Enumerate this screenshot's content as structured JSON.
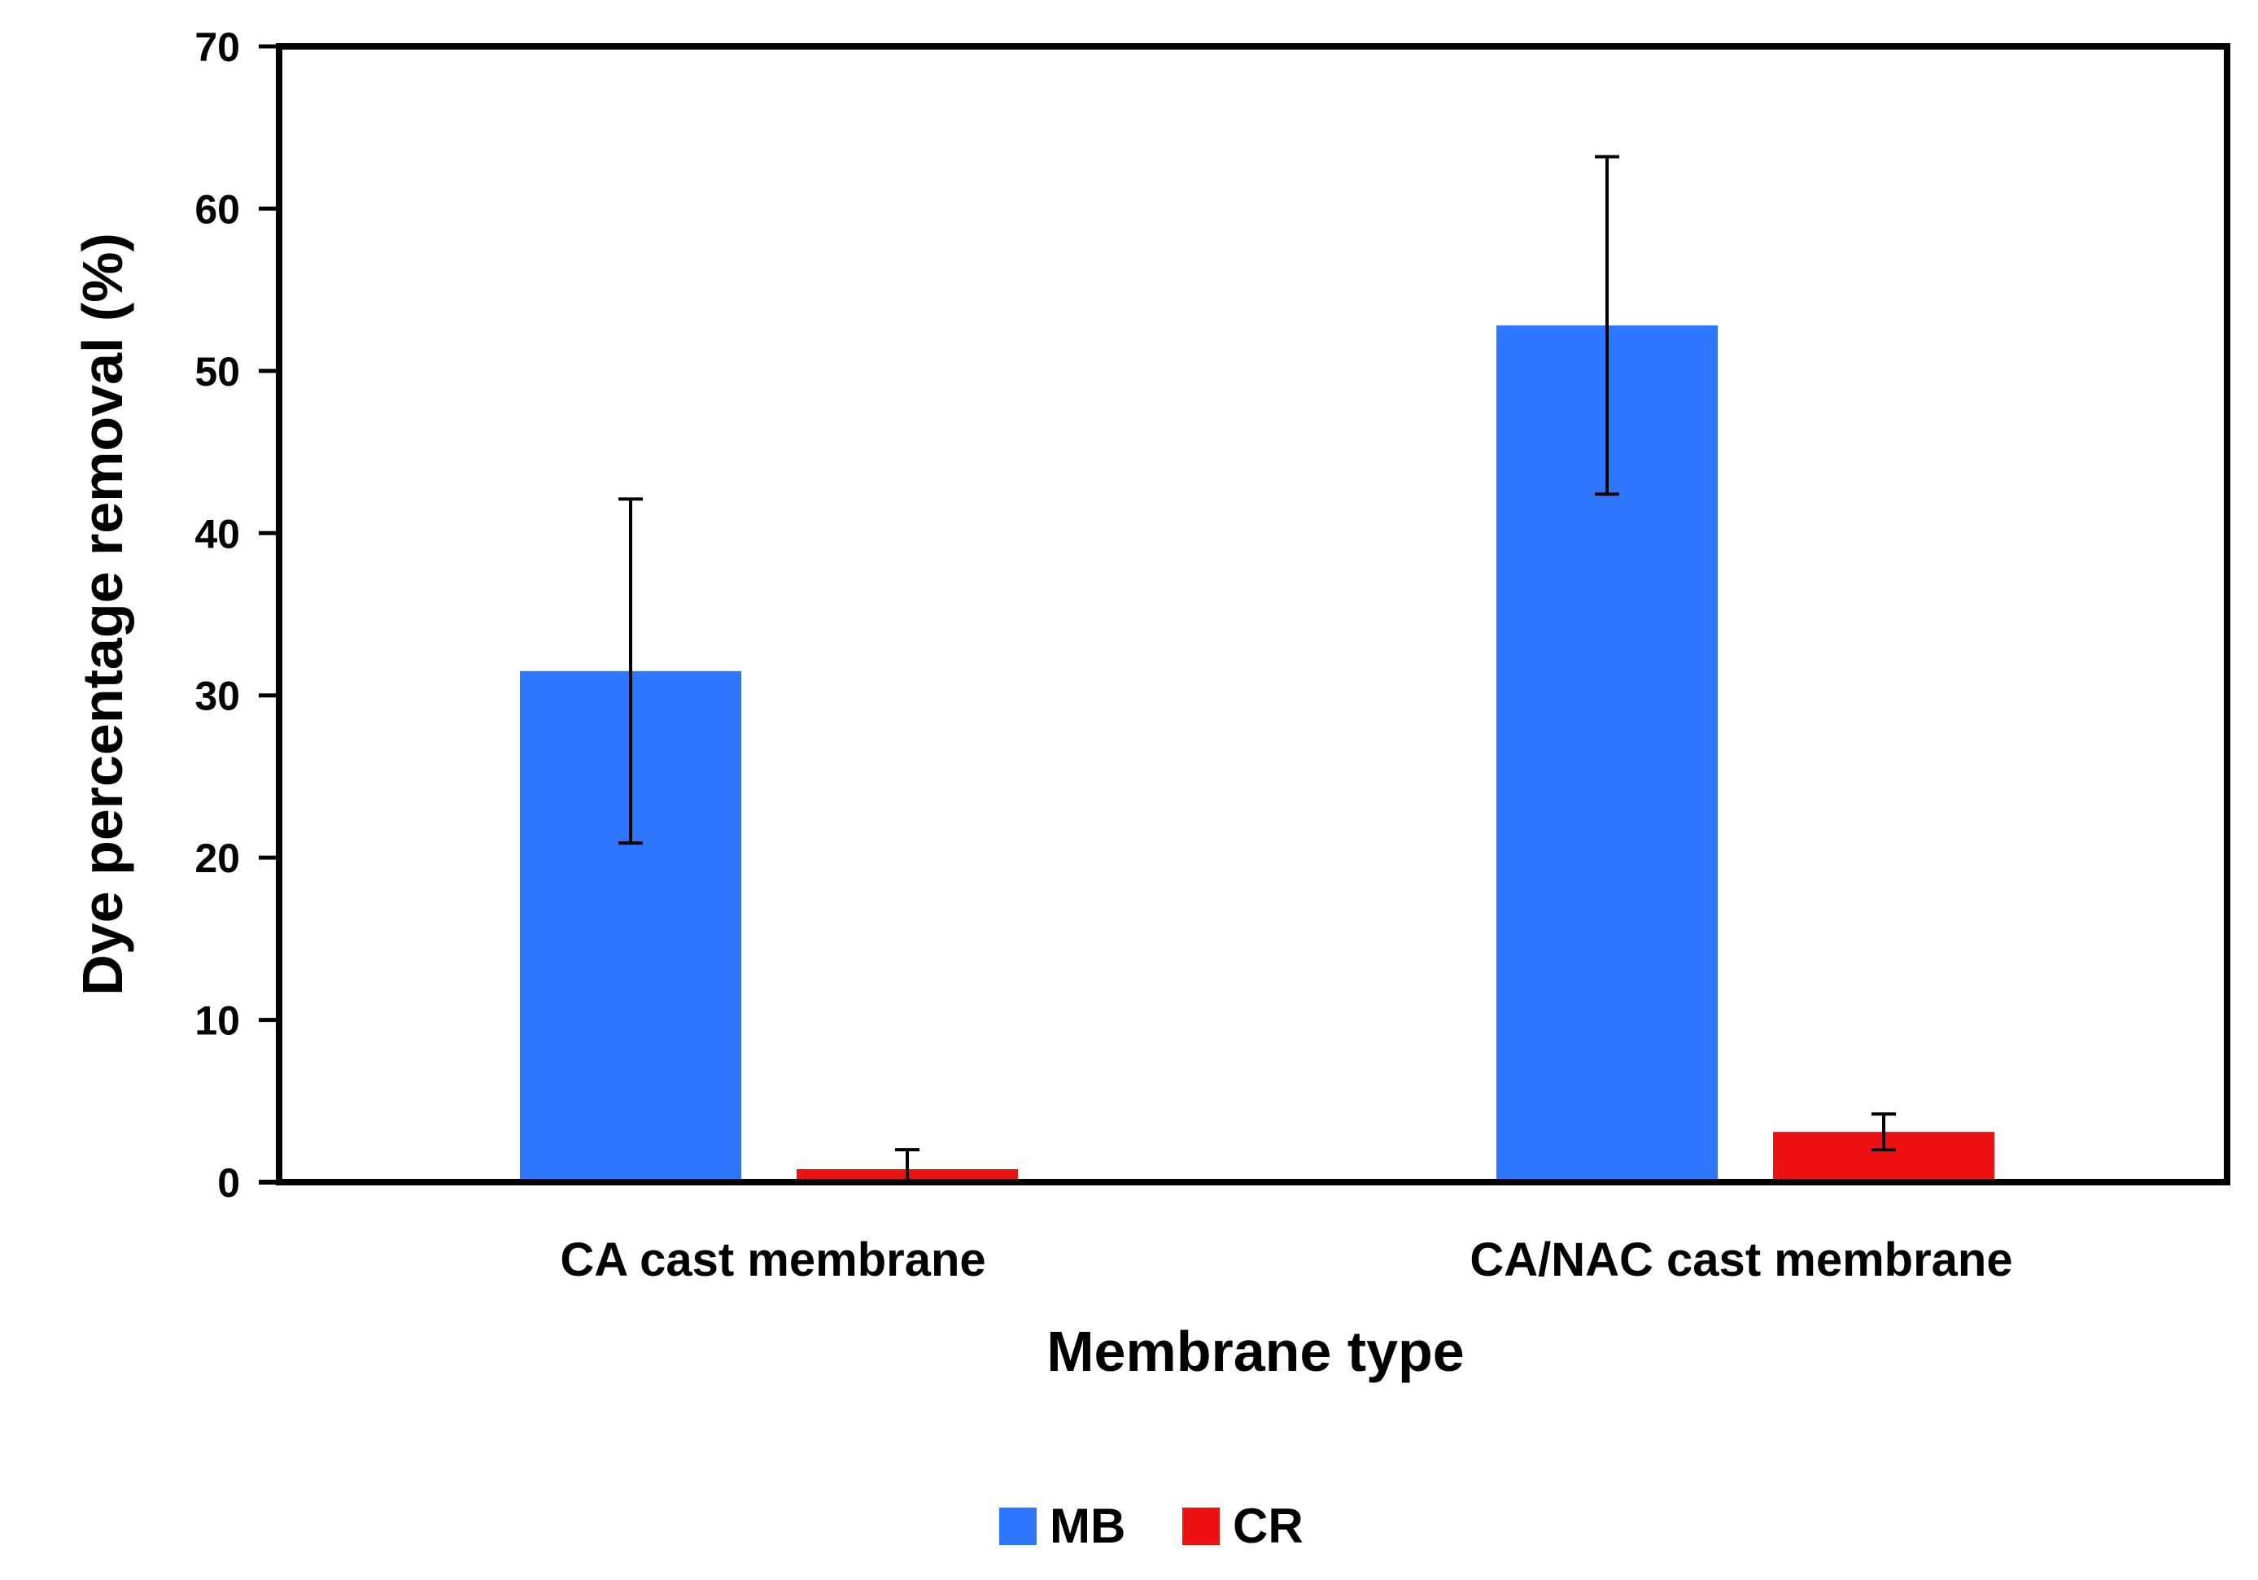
{
  "chart_data": {
    "type": "bar",
    "title": "",
    "xlabel": "Membrane type",
    "ylabel": "Dye percentage removal (%)",
    "ylim": [
      0,
      70
    ],
    "yticks": [
      0,
      10,
      20,
      30,
      40,
      50,
      60,
      70
    ],
    "yticks_labels": [
      "0",
      "10",
      "20",
      "30",
      "40",
      "50",
      "60",
      "70"
    ],
    "grid": false,
    "legend_position": "bottom-center",
    "categories": [
      "CA cast membrane",
      "CA/NAC cast membrane"
    ],
    "series": [
      {
        "name": "MB",
        "color": "#2F77FF",
        "values": [
          31.5,
          52.8
        ],
        "errors": [
          10.6,
          10.4
        ]
      },
      {
        "name": "CR",
        "color": "#EE1111",
        "values": [
          0.8,
          3.1
        ],
        "errors": [
          1.2,
          1.1
        ]
      }
    ]
  }
}
